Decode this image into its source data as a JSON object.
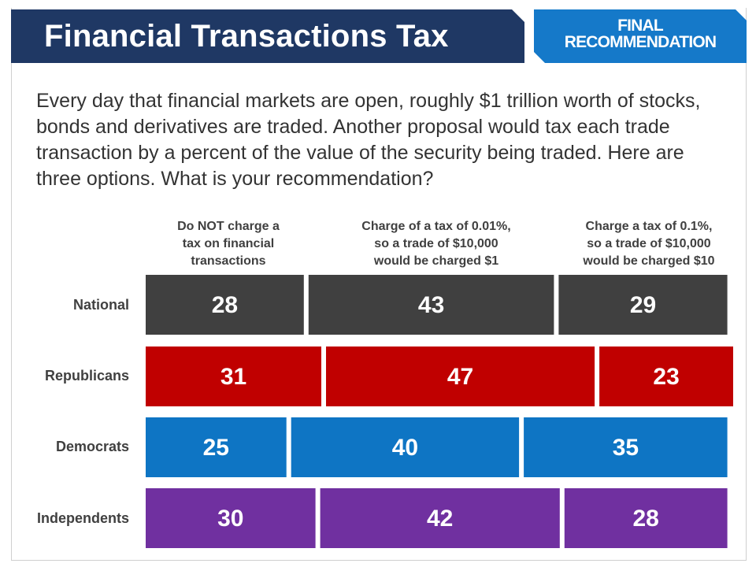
{
  "header": {
    "title": "Financial Transactions Tax",
    "badge_line1": "FINAL",
    "badge_line2": "RECOMMENDATION"
  },
  "intro_text": "Every day that financial markets are open, roughly $1 trillion worth of stocks, bonds and derivatives are traded.  Another proposal would tax each trade transaction by a percent of the value of the security being traded. Here are three options. What is your recommendation?",
  "colors": {
    "header_bg": "#1f3864",
    "badge_bg": "#1579c9",
    "national": "#404040",
    "republicans": "#c00000",
    "democrats": "#0e75c4",
    "independents": "#7030a0"
  },
  "chart_data": {
    "type": "bar",
    "orientation": "horizontal",
    "stacked": true,
    "title": "Financial Transactions Tax",
    "categories": [
      "National",
      "Republicans",
      "Democrats",
      "Independents"
    ],
    "series": [
      {
        "name": "Do NOT charge a tax on financial transactions",
        "values": [
          28,
          31,
          25,
          30
        ]
      },
      {
        "name": "Charge of a tax of 0.01%, so a trade of $10,000 would be charged $1",
        "values": [
          43,
          47,
          40,
          42
        ]
      },
      {
        "name": "Charge a tax of 0.1%, so a trade of $10,000 would be charged $10",
        "values": [
          29,
          23,
          35,
          28
        ]
      }
    ],
    "column_headers": [
      [
        "Do NOT charge a",
        "tax on financial",
        "transactions"
      ],
      [
        "Charge of a tax of 0.01%,",
        "so a trade of $10,000",
        "would be charged $1"
      ],
      [
        "Charge a tax of 0.1%,",
        "so a trade of $10,000",
        "would be charged $10"
      ]
    ],
    "xlim": [
      0,
      101
    ],
    "xlabel": "",
    "ylabel": "",
    "grid": false
  }
}
